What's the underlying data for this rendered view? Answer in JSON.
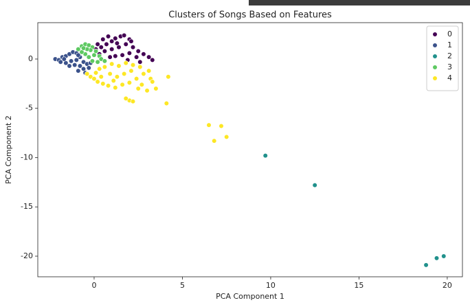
{
  "chart_data": {
    "type": "scatter",
    "title": "Clusters of Songs Based on Features",
    "x_label": "PCA Component 1",
    "y_label": "PCA Component 2",
    "xlim": [
      -3.19,
      20.86
    ],
    "ylim": [
      -22.09,
      3.69
    ],
    "xticks": [
      0,
      5,
      10,
      15,
      20
    ],
    "yticks": [
      0,
      -5,
      -10,
      -15,
      -20
    ],
    "legend": "upper right",
    "series": [
      {
        "name": "0",
        "color": "#440154",
        "x": [
          0.2,
          0.5,
          0.8,
          1.0,
          1.2,
          1.5,
          1.7,
          2.0,
          1.8,
          1.4,
          1.0,
          0.6,
          0.3,
          0.1,
          2.2,
          2.5,
          2.8,
          3.1,
          3.3,
          2.4,
          2.0,
          1.6,
          1.2,
          0.9,
          2.6,
          1.9,
          0.7,
          1.3,
          2.1,
          0.4
        ],
        "y": [
          1.5,
          2.0,
          2.3,
          1.8,
          2.1,
          2.3,
          2.4,
          2.0,
          1.5,
          1.2,
          1.0,
          0.8,
          0.5,
          1.0,
          1.2,
          0.8,
          0.5,
          0.2,
          -0.1,
          0.2,
          0.6,
          0.4,
          0.3,
          0.2,
          -0.3,
          -0.1,
          1.5,
          1.6,
          1.8,
          1.2
        ]
      },
      {
        "name": "1",
        "color": "#3b528b",
        "x": [
          -2.2,
          -2.0,
          -1.8,
          -1.6,
          -1.4,
          -1.2,
          -1.0,
          -1.9,
          -1.6,
          -1.3,
          -1.0,
          -0.8,
          -0.6,
          -0.4,
          -0.3,
          -0.6,
          -0.8,
          -1.1,
          -1.4,
          -0.9,
          -0.5,
          -0.2,
          -1.7,
          -0.9
        ],
        "y": [
          0,
          -0.1,
          0.2,
          0.3,
          0.5,
          0.7,
          0.6,
          -0.3,
          -0.4,
          -0.2,
          -0.1,
          0.2,
          -0.3,
          -0.5,
          -0.9,
          -1.0,
          -0.7,
          -0.6,
          -0.7,
          -1.2,
          -1.4,
          -0.4,
          0,
          0.4
        ]
      },
      {
        "name": "2",
        "color": "#21918c",
        "x": [
          9.7,
          12.5,
          18.8,
          19.4,
          19.8
        ],
        "y": [
          -9.8,
          -12.8,
          -20.9,
          -20.2,
          -20.0
        ]
      },
      {
        "name": "3",
        "color": "#5ec962",
        "x": [
          -0.9,
          -0.7,
          -0.5,
          -0.3,
          -0.1,
          0.1,
          0.3,
          0.4,
          0.2,
          -0.1,
          -0.3,
          -0.5,
          -0.7,
          -0.2,
          0,
          -0.4,
          -0.6,
          0.6
        ],
        "y": [
          1.0,
          1.3,
          1.5,
          1.4,
          1.2,
          0.8,
          0.3,
          0,
          -0.3,
          -0.2,
          0.2,
          0.5,
          0.7,
          0.9,
          0.4,
          1.0,
          1.1,
          -0.2
        ]
      },
      {
        "name": "4",
        "color": "#fde725",
        "x": [
          -0.4,
          -0.2,
          0,
          0.2,
          0.5,
          0.8,
          1.2,
          1.6,
          2.0,
          2.4,
          2.8,
          3.1,
          2.6,
          2.2,
          1.8,
          1.4,
          1.0,
          0.6,
          0.3,
          0.1,
          0.9,
          1.3,
          1.7,
          2.1,
          1.1,
          0.4,
          3.2,
          6.5,
          7.2,
          6.8,
          7.5,
          4.2,
          4.1,
          2.0,
          1.8,
          2.2,
          3.5,
          3.3,
          3.0,
          2.7,
          2.5
        ],
        "y": [
          -1.5,
          -1.8,
          -2.0,
          -2.3,
          -2.5,
          -2.7,
          -2.9,
          -2.6,
          -2.4,
          -2.0,
          -1.5,
          -1.2,
          -0.8,
          -0.6,
          -0.4,
          -0.7,
          -0.5,
          -0.8,
          -1.0,
          -1.4,
          -1.5,
          -1.8,
          -1.5,
          -1.2,
          -2.2,
          -1.8,
          -2.0,
          -6.7,
          -6.8,
          -8.3,
          -7.9,
          -1.8,
          -4.5,
          -4.2,
          -4.0,
          -4.3,
          -3.0,
          -2.3,
          -3.2,
          -2.6,
          -3.0
        ]
      }
    ]
  }
}
